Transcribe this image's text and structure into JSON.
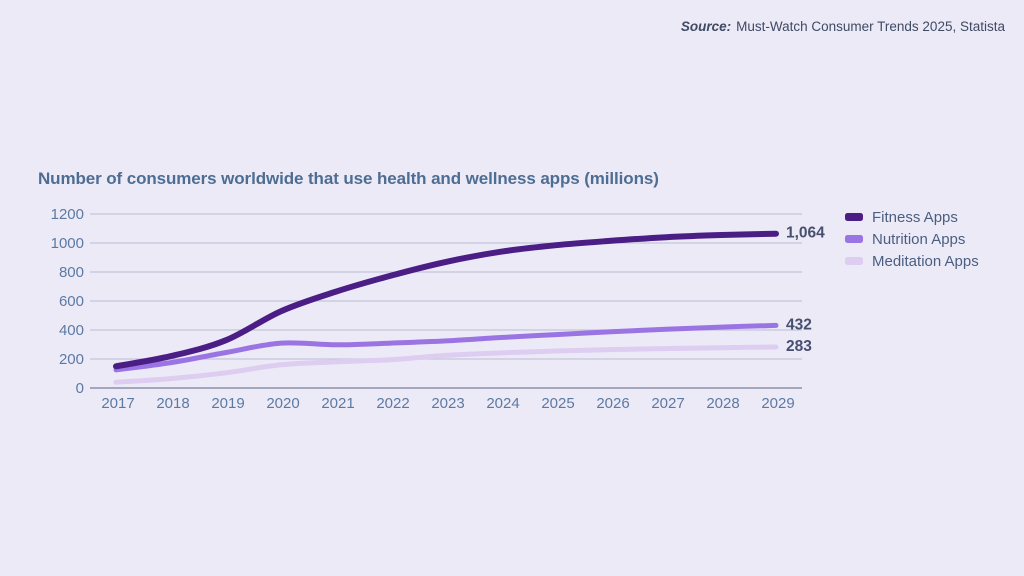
{
  "page": {
    "background": "#EDEAF8"
  },
  "source": {
    "label": "Source:",
    "text": "Must-Watch Consumer Trends 2025, Statista"
  },
  "chart": {
    "title": "Number of consumers worldwide that use health and wellness apps (millions)"
  },
  "chart_data": {
    "type": "line",
    "title": "Number of consumers worldwide that use health and wellness apps (millions)",
    "categories": [
      2017,
      2018,
      2019,
      2020,
      2021,
      2022,
      2023,
      2024,
      2025,
      2026,
      2027,
      2028,
      2029
    ],
    "series": [
      {
        "name": "Fitness Apps",
        "color": "#4B1E85",
        "stroke_width": 6,
        "end_label": "1,064",
        "values": [
          150,
          220,
          330,
          530,
          665,
          775,
          870,
          940,
          985,
          1015,
          1040,
          1055,
          1064
        ]
      },
      {
        "name": "Nutrition Apps",
        "color": "#9B74E3",
        "stroke_width": 5,
        "end_label": "432",
        "values": [
          125,
          175,
          245,
          310,
          298,
          310,
          325,
          348,
          368,
          388,
          405,
          420,
          432
        ]
      },
      {
        "name": "Meditation Apps",
        "color": "#DCCDF1",
        "stroke_width": 5,
        "end_label": "283",
        "values": [
          40,
          65,
          105,
          160,
          180,
          195,
          225,
          242,
          255,
          265,
          272,
          278,
          283
        ]
      }
    ],
    "y_ticks": [
      0,
      200,
      400,
      600,
      800,
      1000,
      1200
    ],
    "ylim": [
      0,
      1200
    ],
    "grid": true,
    "legend_position": "right",
    "colors": {
      "grid": "#C2C5D8",
      "axis": "#8B90A7",
      "tick_label": "#5B7AA3",
      "end_label": "#454F6E"
    }
  }
}
